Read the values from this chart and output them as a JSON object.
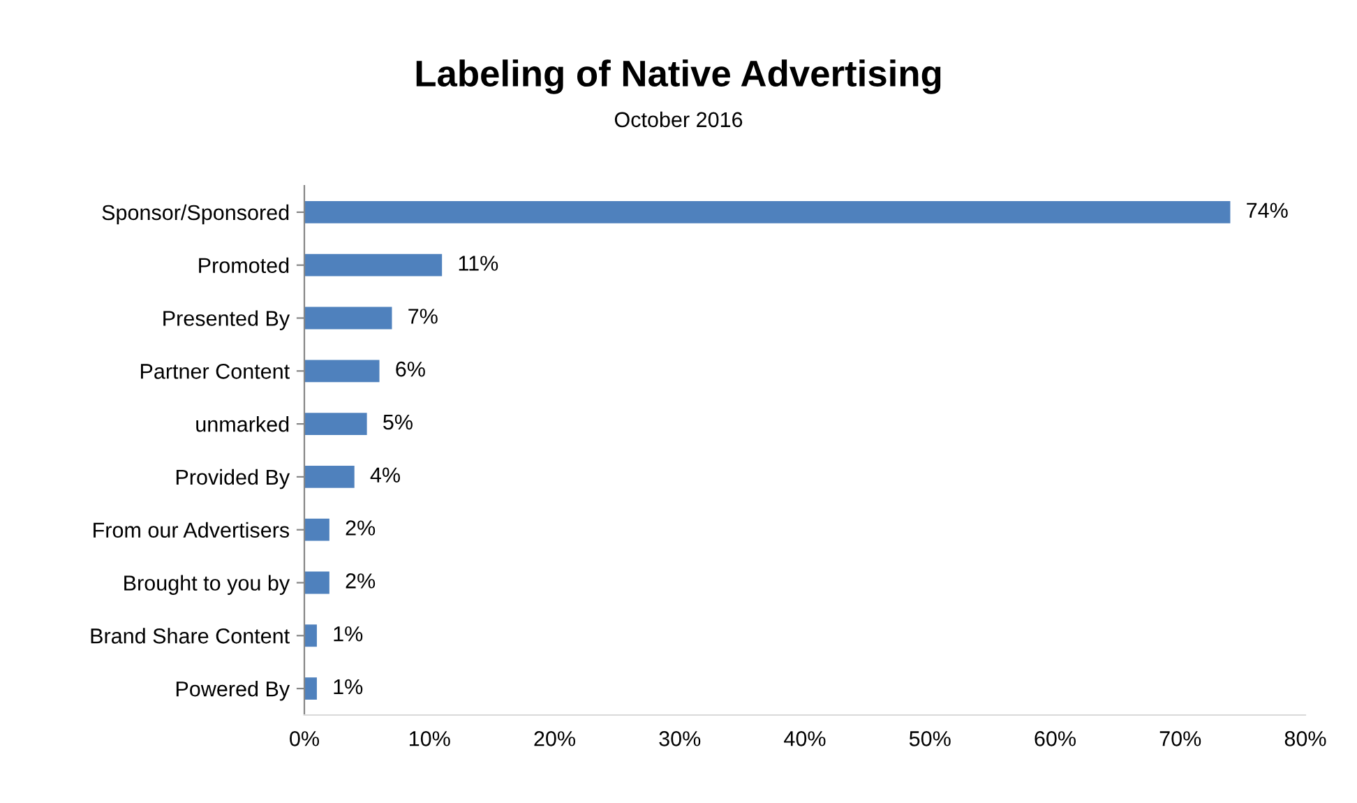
{
  "chart_data": {
    "type": "bar",
    "orientation": "horizontal",
    "title": "Labeling of Native Advertising",
    "subtitle": "October 2016",
    "categories": [
      "Sponsor/Sponsored",
      "Promoted",
      "Presented By",
      "Partner Content",
      "unmarked",
      "Provided By",
      "From our Advertisers",
      "Brought to you by",
      "Brand Share Content",
      "Powered By"
    ],
    "values": [
      74,
      11,
      7,
      6,
      5,
      4,
      2,
      2,
      1,
      1
    ],
    "value_labels": [
      "74%",
      "11%",
      "7%",
      "6%",
      "5%",
      "4%",
      "2%",
      "2%",
      "1%",
      "1%"
    ],
    "color": "#4f81bd",
    "xlim": [
      0,
      80
    ],
    "xticks": [
      {
        "value": 0,
        "label": "0%"
      },
      {
        "value": 10,
        "label": "10%"
      },
      {
        "value": 20,
        "label": "20%"
      },
      {
        "value": 30,
        "label": "30%"
      },
      {
        "value": 40,
        "label": "40%"
      },
      {
        "value": 50,
        "label": "50%"
      },
      {
        "value": 60,
        "label": "60%"
      },
      {
        "value": 70,
        "label": "70%"
      },
      {
        "value": 80,
        "label": "80%"
      }
    ],
    "grid": false,
    "legend": false
  }
}
